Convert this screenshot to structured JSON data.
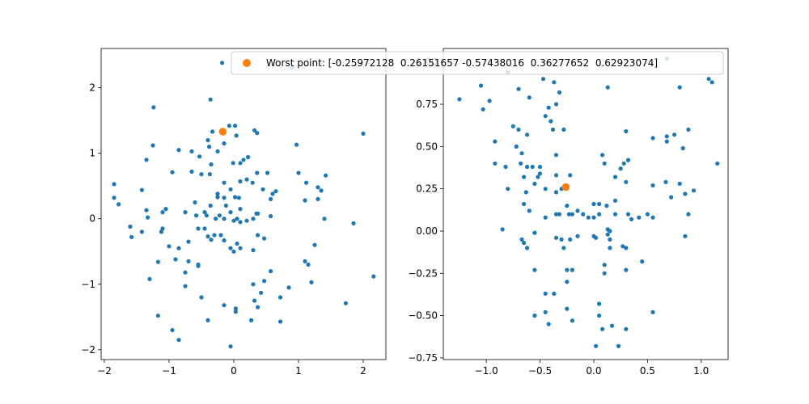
{
  "chart_data": [
    {
      "type": "scatter",
      "xlim": [
        -2.05,
        2.35
      ],
      "ylim": [
        -2.15,
        2.6
      ],
      "xticks": [
        -2,
        -1,
        0,
        1,
        2
      ],
      "yticks": [
        -2,
        -1,
        0,
        1,
        2
      ],
      "colors": {
        "points": "#1f77b4",
        "worst": "#ff7f0e"
      },
      "worst": {
        "x": -0.17,
        "y": 1.33
      },
      "points": [
        [
          -0.18,
          2.38
        ],
        [
          0.9,
          2.3
        ],
        [
          -1.24,
          1.7
        ],
        [
          -0.36,
          1.82
        ],
        [
          -1.25,
          1.12
        ],
        [
          -1.35,
          0.9
        ],
        [
          -0.95,
          0.71
        ],
        [
          -0.85,
          1.05
        ],
        [
          -0.65,
          1.03
        ],
        [
          -0.53,
          0.95
        ],
        [
          -0.4,
          1.2
        ],
        [
          -0.33,
          1.33
        ],
        [
          -0.35,
          0.83
        ],
        [
          -0.25,
          1.03
        ],
        [
          -0.15,
          1.15
        ],
        [
          -0.07,
          1.42
        ],
        [
          0.02,
          1.42
        ],
        [
          0.04,
          1.27
        ],
        [
          -0.38,
          1.1
        ],
        [
          -0.65,
          0.72
        ],
        [
          -0.5,
          0.68
        ],
        [
          -0.37,
          0.68
        ],
        [
          -0.15,
          0.55
        ],
        [
          -0.01,
          0.85
        ],
        [
          0.1,
          0.85
        ],
        [
          0.15,
          0.9
        ],
        [
          0.22,
          0.94
        ],
        [
          0.32,
          1.35
        ],
        [
          0.36,
          1.31
        ],
        [
          -0.25,
          0.38
        ],
        [
          -0.25,
          0.33
        ],
        [
          -0.15,
          0.32
        ],
        [
          -0.05,
          0.45
        ],
        [
          0.02,
          0.33
        ],
        [
          0.08,
          0.32
        ],
        [
          0.1,
          0.57
        ],
        [
          0.2,
          0.6
        ],
        [
          0.29,
          0.55
        ],
        [
          0.36,
          0.7
        ],
        [
          0.52,
          0.7
        ],
        [
          0.45,
          0.45
        ],
        [
          0.57,
          0.3
        ],
        [
          0.6,
          0.38
        ],
        [
          0.65,
          0.42
        ],
        [
          -1.85,
          0.53
        ],
        [
          -1.85,
          0.32
        ],
        [
          -1.78,
          0.22
        ],
        [
          -1.42,
          0.44
        ],
        [
          -1.35,
          0.13
        ],
        [
          -1.33,
          0.02
        ],
        [
          -1.1,
          0.1
        ],
        [
          -1.05,
          0.15
        ],
        [
          -0.75,
          0.1
        ],
        [
          -0.6,
          0.25
        ],
        [
          -0.58,
          0.05
        ],
        [
          -0.45,
          0.1
        ],
        [
          -0.42,
          0.05
        ],
        [
          -0.36,
          0.2
        ],
        [
          -0.28,
          0.0
        ],
        [
          -0.22,
          0.05
        ],
        [
          -0.15,
          0.0
        ],
        [
          -0.12,
          0.2
        ],
        [
          -0.05,
          0.1
        ],
        [
          0.0,
          -0.03
        ],
        [
          0.05,
          0.0
        ],
        [
          0.1,
          0.15
        ],
        [
          0.1,
          -0.05
        ],
        [
          0.2,
          -0.03
        ],
        [
          0.3,
          0.0
        ],
        [
          0.35,
          0.08
        ],
        [
          0.37,
          0.08
        ],
        [
          0.57,
          0.04
        ],
        [
          -1.6,
          -0.12
        ],
        [
          -1.58,
          -0.28
        ],
        [
          -1.42,
          -0.2
        ],
        [
          -1.12,
          -0.2
        ],
        [
          -1.1,
          -0.15
        ],
        [
          -1.0,
          -0.42
        ],
        [
          -0.9,
          -0.62
        ],
        [
          -0.85,
          -0.45
        ],
        [
          -0.7,
          -0.35
        ],
        [
          -0.55,
          -0.15
        ],
        [
          -0.45,
          -0.15
        ],
        [
          -0.4,
          -0.27
        ],
        [
          -0.35,
          -0.32
        ],
        [
          -0.3,
          -0.25
        ],
        [
          -0.2,
          -0.25
        ],
        [
          -0.15,
          -0.33
        ],
        [
          -0.05,
          -0.45
        ],
        [
          0.0,
          -0.5
        ],
        [
          0.05,
          -0.38
        ],
        [
          0.1,
          -0.45
        ],
        [
          0.3,
          -0.48
        ],
        [
          0.37,
          -0.25
        ],
        [
          0.47,
          -0.3
        ],
        [
          -1.3,
          -0.92
        ],
        [
          -1.17,
          -0.66
        ],
        [
          -0.7,
          -0.65
        ],
        [
          -0.55,
          -0.7
        ],
        [
          -0.55,
          -0.72
        ],
        [
          -0.75,
          -0.82
        ],
        [
          -0.75,
          -1.03
        ],
        [
          -0.5,
          -1.2
        ],
        [
          0.3,
          -1.0
        ],
        [
          0.42,
          -1.13
        ],
        [
          0.47,
          -0.95
        ],
        [
          0.57,
          -0.8
        ],
        [
          0.72,
          -1.2
        ],
        [
          0.85,
          -1.05
        ],
        [
          -0.15,
          -1.32
        ],
        [
          0.03,
          -1.37
        ],
        [
          0.03,
          -1.42
        ],
        [
          0.32,
          -1.25
        ],
        [
          0.37,
          -1.35
        ],
        [
          0.27,
          -1.55
        ],
        [
          0.72,
          -1.57
        ],
        [
          -1.17,
          -1.48
        ],
        [
          -0.95,
          -1.7
        ],
        [
          -0.85,
          -1.85
        ],
        [
          -0.4,
          -1.55
        ],
        [
          -0.05,
          -1.95
        ],
        [
          1.0,
          0.7
        ],
        [
          1.12,
          0.55
        ],
        [
          1.3,
          0.48
        ],
        [
          1.35,
          0.43
        ],
        [
          1.42,
          0.66
        ],
        [
          1.1,
          0.28
        ],
        [
          1.3,
          0.3
        ],
        [
          1.4,
          0.0
        ],
        [
          1.1,
          -0.65
        ],
        [
          1.15,
          -0.7
        ],
        [
          1.25,
          -0.4
        ],
        [
          1.2,
          -0.97
        ],
        [
          0.97,
          1.13
        ],
        [
          2.0,
          1.3
        ],
        [
          1.85,
          -0.07
        ],
        [
          1.73,
          -1.29
        ],
        [
          2.16,
          -0.88
        ]
      ]
    },
    {
      "type": "scatter",
      "xlim": [
        -1.4,
        1.25
      ],
      "ylim": [
        -0.76,
        1.08
      ],
      "xticks": [
        -1.0,
        -0.5,
        0.0,
        0.5,
        1.0
      ],
      "xtick_labels": [
        "−1.0",
        "−0.5",
        "0.0",
        "0.5",
        "1.0"
      ],
      "yticks": [
        -0.75,
        -0.5,
        -0.25,
        0.0,
        0.25,
        0.5,
        0.75,
        1.0
      ],
      "ytick_labels": [
        "−0.75",
        "−0.50",
        "−0.25",
        "0.00",
        "0.25",
        "0.50",
        "0.75",
        "1.00"
      ],
      "colors": {
        "points": "#1f77b4",
        "worst": "#ff7f0e"
      },
      "worst": {
        "x": -0.26,
        "y": 0.26
      },
      "points": [
        [
          0.68,
          1.02
        ],
        [
          -0.8,
          0.94
        ],
        [
          -0.47,
          0.9
        ],
        [
          -0.37,
          0.88
        ],
        [
          -1.25,
          0.78
        ],
        [
          -1.05,
          0.86
        ],
        [
          -0.97,
          0.77
        ],
        [
          -1.03,
          0.72
        ],
        [
          -0.7,
          0.84
        ],
        [
          -0.6,
          0.79
        ],
        [
          -0.32,
          0.82
        ],
        [
          0.13,
          0.85
        ],
        [
          -0.42,
          0.73
        ],
        [
          -0.35,
          0.75
        ],
        [
          -0.45,
          0.68
        ],
        [
          -0.4,
          0.65
        ],
        [
          -0.38,
          0.6
        ],
        [
          -0.28,
          0.6
        ],
        [
          -0.75,
          0.62
        ],
        [
          -0.7,
          0.6
        ],
        [
          -0.62,
          0.57
        ],
        [
          -0.92,
          0.53
        ],
        [
          -0.72,
          0.5
        ],
        [
          -0.67,
          0.46
        ],
        [
          -0.92,
          0.4
        ],
        [
          -0.82,
          0.38
        ],
        [
          -0.68,
          0.4
        ],
        [
          -0.62,
          0.38
        ],
        [
          -0.57,
          0.38
        ],
        [
          -0.52,
          0.32
        ],
        [
          -0.5,
          0.38
        ],
        [
          -0.5,
          0.34
        ],
        [
          -0.35,
          0.45
        ],
        [
          -0.35,
          0.33
        ],
        [
          -0.22,
          0.33
        ],
        [
          0.08,
          0.45
        ],
        [
          0.1,
          0.4
        ],
        [
          0.3,
          0.59
        ],
        [
          0.2,
          0.32
        ],
        [
          0.25,
          0.37
        ],
        [
          0.28,
          0.4
        ],
        [
          0.32,
          0.42
        ],
        [
          0.3,
          0.29
        ],
        [
          -0.8,
          0.25
        ],
        [
          -0.65,
          0.32
        ],
        [
          -0.55,
          0.28
        ],
        [
          -0.63,
          0.23
        ],
        [
          -0.45,
          0.25
        ],
        [
          -0.35,
          0.23
        ],
        [
          -0.3,
          0.25
        ],
        [
          -0.65,
          0.16
        ],
        [
          -0.6,
          0.12
        ],
        [
          -0.45,
          0.08
        ],
        [
          -0.32,
          0.1
        ],
        [
          -0.25,
          0.15
        ],
        [
          -0.2,
          0.1
        ],
        [
          -0.15,
          0.12
        ],
        [
          -0.1,
          0.1
        ],
        [
          -0.05,
          0.08
        ],
        [
          0.0,
          0.08
        ],
        [
          0.0,
          0.16
        ],
        [
          0.05,
          0.16
        ],
        [
          0.12,
          0.15
        ],
        [
          0.2,
          0.18
        ],
        [
          0.2,
          0.1
        ],
        [
          0.05,
          0.1
        ],
        [
          -0.23,
          0.1
        ],
        [
          -0.35,
          0.1
        ],
        [
          0.32,
          0.1
        ],
        [
          0.35,
          0.07
        ],
        [
          0.42,
          0.08
        ],
        [
          0.5,
          0.1
        ],
        [
          0.55,
          0.08
        ],
        [
          0.55,
          0.55
        ],
        [
          0.55,
          0.27
        ],
        [
          0.68,
          0.53
        ],
        [
          0.67,
          0.29
        ],
        [
          0.75,
          0.57
        ],
        [
          0.8,
          0.85
        ],
        [
          0.8,
          0.28
        ],
        [
          0.83,
          0.49
        ],
        [
          0.88,
          0.6
        ],
        [
          0.88,
          0.1
        ],
        [
          0.85,
          0.22
        ],
        [
          0.93,
          0.24
        ],
        [
          0.68,
          0.56
        ],
        [
          0.72,
          0.2
        ],
        [
          1.07,
          0.9
        ],
        [
          1.1,
          0.88
        ],
        [
          1.15,
          0.4
        ],
        [
          0.85,
          -0.03
        ],
        [
          -0.85,
          0.01
        ],
        [
          -0.67,
          -0.05
        ],
        [
          -0.65,
          -0.07
        ],
        [
          -0.62,
          -0.1
        ],
        [
          -0.55,
          -0.01
        ],
        [
          -0.35,
          -0.04
        ],
        [
          -0.3,
          -0.05
        ],
        [
          -0.22,
          -0.05
        ],
        [
          -0.15,
          -0.03
        ],
        [
          0.0,
          -0.03
        ],
        [
          0.02,
          -0.04
        ],
        [
          0.13,
          -0.02
        ],
        [
          0.13,
          0.01
        ],
        [
          0.15,
          0.0
        ],
        [
          0.15,
          -0.05
        ],
        [
          0.15,
          -0.1
        ],
        [
          0.1,
          -0.2
        ],
        [
          0.27,
          -0.09
        ],
        [
          0.3,
          -0.1
        ],
        [
          0.45,
          -0.18
        ],
        [
          -0.55,
          -0.23
        ],
        [
          -0.28,
          -0.1
        ],
        [
          -0.25,
          -0.23
        ],
        [
          -0.2,
          -0.23
        ],
        [
          0.1,
          -0.25
        ],
        [
          0.3,
          -0.23
        ],
        [
          -0.25,
          -0.3
        ],
        [
          -0.45,
          -0.37
        ],
        [
          -0.37,
          -0.37
        ],
        [
          -0.55,
          -0.5
        ],
        [
          -0.45,
          -0.48
        ],
        [
          -0.42,
          -0.55
        ],
        [
          -0.25,
          -0.46
        ],
        [
          -0.2,
          -0.53
        ],
        [
          0.05,
          -0.43
        ],
        [
          0.05,
          -0.5
        ],
        [
          0.08,
          -0.58
        ],
        [
          0.17,
          -0.56
        ],
        [
          0.23,
          -0.68
        ],
        [
          0.3,
          -0.58
        ],
        [
          0.55,
          -0.48
        ],
        [
          0.02,
          -0.68
        ]
      ]
    }
  ],
  "legend": {
    "label": "Worst point: [-0.25972128  0.26151657 -0.57438016  0.36277652  0.62923074]",
    "placement": "upper-center"
  }
}
